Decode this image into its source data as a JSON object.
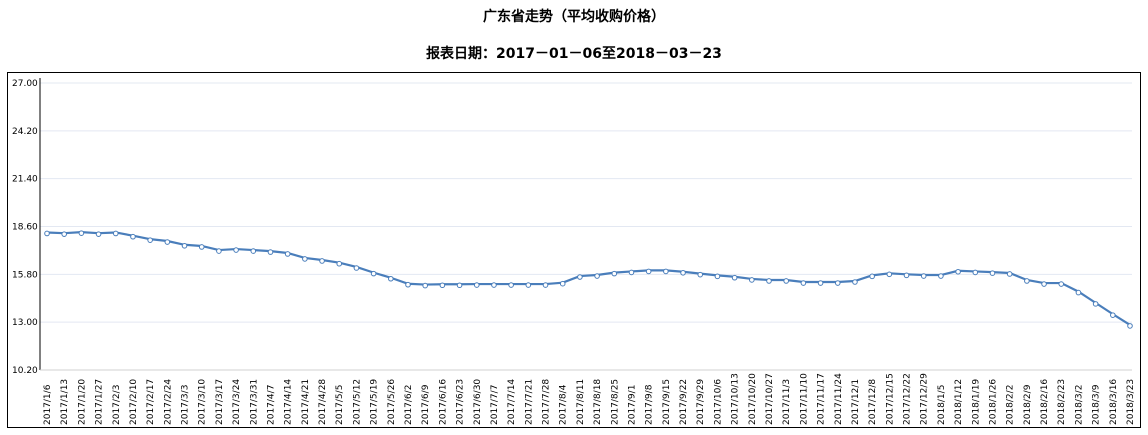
{
  "title": "广东省走势（平均收购价格）",
  "subtitle": "报表日期：2017－01－06至2018－03－23",
  "chart_data": {
    "type": "line",
    "title": "广东省走势（平均收购价格）",
    "subtitle": "报表日期：2017－01－06至2018－03－23",
    "xlabel": "",
    "ylabel": "",
    "ylim": [
      10.2,
      27.0
    ],
    "yticks": [
      "10.20",
      "13.00",
      "15.80",
      "18.60",
      "21.40",
      "24.20",
      "27.00"
    ],
    "grid": true,
    "legend": "none",
    "line_color": "#4a7ebb",
    "categories": [
      "2017/1/6",
      "2017/1/13",
      "2017/1/20",
      "2017/1/27",
      "2017/2/3",
      "2017/2/10",
      "2017/2/17",
      "2017/2/24",
      "2017/3/3",
      "2017/3/10",
      "2017/3/17",
      "2017/3/24",
      "2017/3/31",
      "2017/4/7",
      "2017/4/14",
      "2017/4/21",
      "2017/4/28",
      "2017/5/5",
      "2017/5/12",
      "2017/5/19",
      "2017/5/26",
      "2017/6/2",
      "2017/6/9",
      "2017/6/16",
      "2017/6/23",
      "2017/6/30",
      "2017/7/7",
      "2017/7/14",
      "2017/7/21",
      "2017/7/28",
      "2017/8/4",
      "2017/8/11",
      "2017/8/18",
      "2017/8/25",
      "2017/9/1",
      "2017/9/8",
      "2017/9/15",
      "2017/9/22",
      "2017/9/29",
      "2017/10/6",
      "2017/10/13",
      "2017/10/20",
      "2017/10/27",
      "2017/11/3",
      "2017/11/10",
      "2017/11/17",
      "2017/11/24",
      "2017/12/1",
      "2017/12/8",
      "2017/12/15",
      "2017/12/22",
      "2017/12/29",
      "2018/1/5",
      "2018/1/12",
      "2018/1/19",
      "2018/1/26",
      "2018/2/2",
      "2018/2/9",
      "2018/2/16",
      "2018/2/23",
      "2018/3/2",
      "2018/3/9",
      "2018/3/16",
      "2018/3/23"
    ],
    "values": [
      18.25,
      18.21,
      18.27,
      18.21,
      18.25,
      18.06,
      17.86,
      17.75,
      17.53,
      17.46,
      17.22,
      17.28,
      17.22,
      17.16,
      17.05,
      16.76,
      16.64,
      16.48,
      16.23,
      15.9,
      15.6,
      15.25,
      15.2,
      15.22,
      15.22,
      15.23,
      15.23,
      15.23,
      15.23,
      15.23,
      15.31,
      15.7,
      15.76,
      15.9,
      15.97,
      16.03,
      16.03,
      15.95,
      15.84,
      15.74,
      15.66,
      15.53,
      15.47,
      15.47,
      15.35,
      15.35,
      15.35,
      15.41,
      15.74,
      15.86,
      15.8,
      15.76,
      15.76,
      16.01,
      15.97,
      15.93,
      15.88,
      15.47,
      15.29,
      15.29,
      14.79,
      14.13,
      13.47,
      12.84
    ]
  }
}
